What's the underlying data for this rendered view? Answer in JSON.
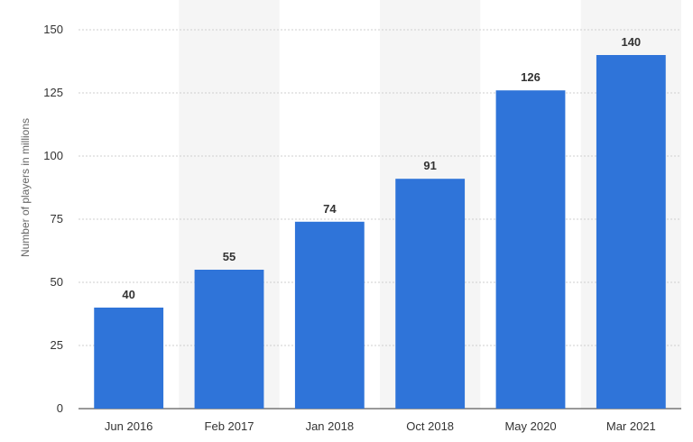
{
  "chart_data": {
    "type": "bar",
    "title": "",
    "xlabel": "",
    "ylabel": "Number of players in millions",
    "categories": [
      "Jun 2016",
      "Feb 2017",
      "Jan 2018",
      "Oct 2018",
      "May 2020",
      "Mar 2021"
    ],
    "values": [
      40,
      55,
      74,
      91,
      126,
      140
    ],
    "data_labels": [
      "40",
      "55",
      "74",
      "91",
      "126",
      "140"
    ],
    "ylim": [
      0,
      150
    ],
    "yticks": [
      0,
      25,
      50,
      75,
      100,
      125,
      150
    ],
    "ytick_labels": [
      "0",
      "25",
      "50",
      "75",
      "100",
      "125",
      "150"
    ],
    "grid": true,
    "grid_style": "dashed horizontal",
    "alternating_column_shading": true,
    "bar_color": "#2f74d9",
    "shade_color": "#f5f5f5",
    "grid_color": "#cfcfcf"
  }
}
